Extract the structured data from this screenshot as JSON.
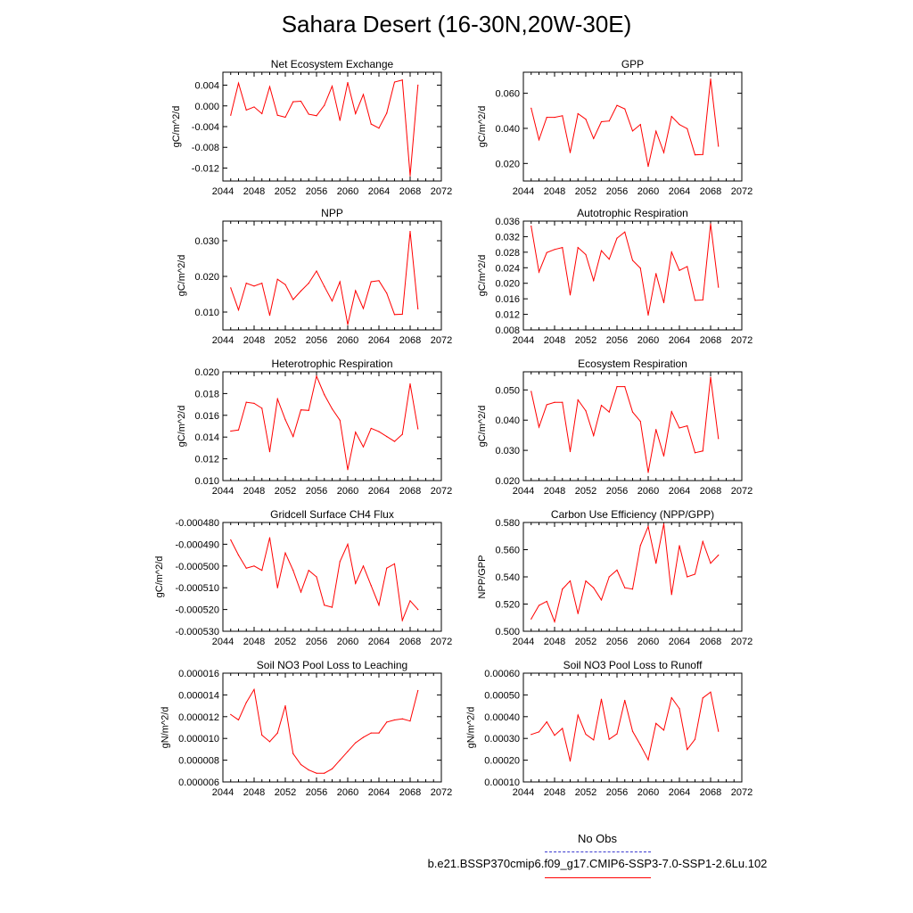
{
  "title": "Sahara Desert (16-30N,20W-30E)",
  "legend": {
    "obs_label": "No Obs",
    "obs_color": "#3a3ad0",
    "run_label": "b.e21.BSSP370cmip6.f09_g17.CMIP6-SSP3-7.0-SSP1-2.6Lu.102",
    "run_color": "#ff0000"
  },
  "chart_data": [
    {
      "type": "line",
      "title": "Net Ecosystem Exchange",
      "ylabel": "gC/m^2/d",
      "xlim": [
        2044,
        2072
      ],
      "ylim": [
        -0.0145,
        0.0065
      ],
      "x_ticks": [
        2044,
        2048,
        2052,
        2056,
        2060,
        2064,
        2068,
        2072
      ],
      "y_ticks": [
        0.004,
        0.0,
        -0.004,
        -0.008,
        -0.012
      ],
      "y_tick_labels": [
        "0.004",
        "0.000",
        "-0.004",
        "-0.008",
        "-0.012"
      ],
      "series": [
        {
          "x": [
            2045,
            2046,
            2047,
            2048,
            2049,
            2050,
            2051,
            2052,
            2053,
            2054,
            2055,
            2056,
            2057,
            2058,
            2059,
            2060,
            2061,
            2062,
            2063,
            2064,
            2065,
            2066,
            2067,
            2068,
            2069
          ],
          "values": [
            -0.0018,
            0.0044,
            -0.0008,
            -0.0002,
            -0.0015,
            0.0037,
            -0.0018,
            -0.0022,
            0.0008,
            0.0009,
            -0.0016,
            -0.0019,
            0.0001,
            0.0038,
            -0.0028,
            0.0045,
            -0.0015,
            0.0022,
            -0.0035,
            -0.0043,
            -0.0014,
            0.0046,
            0.005,
            -0.0135,
            0.004
          ]
        }
      ]
    },
    {
      "type": "line",
      "title": "GPP",
      "ylabel": "gC/m^2/d",
      "xlim": [
        2044,
        2072
      ],
      "ylim": [
        0.01,
        0.072
      ],
      "x_ticks": [
        2044,
        2048,
        2052,
        2056,
        2060,
        2064,
        2068,
        2072
      ],
      "y_ticks": [
        0.02,
        0.04,
        0.06
      ],
      "y_tick_labels": [
        "0.020",
        "0.040",
        "0.060"
      ],
      "series": [
        {
          "x": [
            2045,
            2046,
            2047,
            2048,
            2049,
            2050,
            2051,
            2052,
            2053,
            2054,
            2055,
            2056,
            2057,
            2058,
            2059,
            2060,
            2061,
            2062,
            2063,
            2064,
            2065,
            2066,
            2067,
            2068,
            2069
          ],
          "values": [
            0.0515,
            0.0335,
            0.0463,
            0.0463,
            0.0472,
            0.0262,
            0.0484,
            0.0452,
            0.0342,
            0.0438,
            0.0442,
            0.0531,
            0.0511,
            0.0385,
            0.0422,
            0.0183,
            0.0384,
            0.0262,
            0.0468,
            0.0422,
            0.0398,
            0.0249,
            0.0251,
            0.0681,
            0.0298
          ]
        }
      ]
    },
    {
      "type": "line",
      "title": "NPP",
      "ylabel": "gC/m^2/d",
      "xlim": [
        2044,
        2072
      ],
      "ylim": [
        0.005,
        0.0355
      ],
      "x_ticks": [
        2044,
        2048,
        2052,
        2056,
        2060,
        2064,
        2068,
        2072
      ],
      "y_ticks": [
        0.01,
        0.02,
        0.03
      ],
      "y_tick_labels": [
        "0.010",
        "0.020",
        "0.030"
      ],
      "series": [
        {
          "x": [
            2045,
            2046,
            2047,
            2048,
            2049,
            2050,
            2051,
            2052,
            2053,
            2054,
            2055,
            2056,
            2057,
            2058,
            2059,
            2060,
            2061,
            2062,
            2063,
            2064,
            2065,
            2066,
            2067,
            2068,
            2069
          ],
          "values": [
            0.0168,
            0.0106,
            0.0181,
            0.0173,
            0.0181,
            0.0091,
            0.0192,
            0.0177,
            0.0135,
            0.0159,
            0.0181,
            0.0215,
            0.0172,
            0.0131,
            0.0185,
            0.0065,
            0.016,
            0.011,
            0.0185,
            0.0188,
            0.0153,
            0.0093,
            0.0094,
            0.0326,
            0.0109
          ]
        }
      ]
    },
    {
      "type": "line",
      "title": "Autotrophic Respiration",
      "ylabel": "gC/m^2/d",
      "xlim": [
        2044,
        2072
      ],
      "ylim": [
        0.008,
        0.036
      ],
      "x_ticks": [
        2044,
        2048,
        2052,
        2056,
        2060,
        2064,
        2068,
        2072
      ],
      "y_ticks": [
        0.008,
        0.012,
        0.016,
        0.02,
        0.024,
        0.028,
        0.032,
        0.036
      ],
      "y_tick_labels": [
        "0.008",
        "0.012",
        "0.016",
        "0.020",
        "0.024",
        "0.028",
        "0.032",
        "0.036"
      ],
      "series": [
        {
          "x": [
            2045,
            2046,
            2047,
            2048,
            2049,
            2050,
            2051,
            2052,
            2053,
            2054,
            2055,
            2056,
            2057,
            2058,
            2059,
            2060,
            2061,
            2062,
            2063,
            2064,
            2065,
            2066,
            2067,
            2068,
            2069
          ],
          "values": [
            0.0347,
            0.0229,
            0.0279,
            0.0287,
            0.0292,
            0.017,
            0.0292,
            0.0274,
            0.0207,
            0.0284,
            0.0262,
            0.0316,
            0.0332,
            0.0259,
            0.0239,
            0.0118,
            0.0225,
            0.015,
            0.028,
            0.0233,
            0.0243,
            0.0156,
            0.0157,
            0.0353,
            0.019
          ]
        }
      ]
    },
    {
      "type": "line",
      "title": "Heterotrophic Respiration",
      "ylabel": "gC/m^2/d",
      "xlim": [
        2044,
        2072
      ],
      "ylim": [
        0.01,
        0.02
      ],
      "x_ticks": [
        2044,
        2048,
        2052,
        2056,
        2060,
        2064,
        2068,
        2072
      ],
      "y_ticks": [
        0.01,
        0.012,
        0.014,
        0.016,
        0.018,
        0.02
      ],
      "y_tick_labels": [
        "0.010",
        "0.012",
        "0.014",
        "0.016",
        "0.018",
        "0.020"
      ],
      "series": [
        {
          "x": [
            2045,
            2046,
            2047,
            2048,
            2049,
            2050,
            2051,
            2052,
            2053,
            2054,
            2055,
            2056,
            2057,
            2058,
            2059,
            2060,
            2061,
            2062,
            2063,
            2064,
            2065,
            2066,
            2067,
            2068,
            2069
          ],
          "values": [
            0.01455,
            0.01465,
            0.0172,
            0.0171,
            0.01665,
            0.01265,
            0.0175,
            0.0156,
            0.01405,
            0.0165,
            0.01645,
            0.0196,
            0.0179,
            0.0166,
            0.01555,
            0.011,
            0.01445,
            0.0131,
            0.0148,
            0.0145,
            0.01405,
            0.0136,
            0.01425,
            0.0189,
            0.01475
          ]
        }
      ]
    },
    {
      "type": "line",
      "title": "Ecosystem Respiration",
      "ylabel": "gC/m^2/d",
      "xlim": [
        2044,
        2072
      ],
      "ylim": [
        0.02,
        0.056
      ],
      "x_ticks": [
        2044,
        2048,
        2052,
        2056,
        2060,
        2064,
        2068,
        2072
      ],
      "y_ticks": [
        0.02,
        0.03,
        0.04,
        0.05
      ],
      "y_tick_labels": [
        "0.020",
        "0.030",
        "0.040",
        "0.050"
      ],
      "series": [
        {
          "x": [
            2045,
            2046,
            2047,
            2048,
            2049,
            2050,
            2051,
            2052,
            2053,
            2054,
            2055,
            2056,
            2057,
            2058,
            2059,
            2060,
            2061,
            2062,
            2063,
            2064,
            2065,
            2066,
            2067,
            2068,
            2069
          ],
          "values": [
            0.0495,
            0.0377,
            0.0451,
            0.0459,
            0.0459,
            0.0296,
            0.0467,
            0.0431,
            0.0349,
            0.0449,
            0.0427,
            0.0511,
            0.0511,
            0.0427,
            0.0396,
            0.0227,
            0.0369,
            0.0281,
            0.0428,
            0.0374,
            0.0381,
            0.0292,
            0.0298,
            0.0542,
            0.0339
          ]
        }
      ]
    },
    {
      "type": "line",
      "title": "Gridcell Surface CH4 Flux",
      "ylabel": "gC/m^2/d",
      "xlim": [
        2044,
        2072
      ],
      "ylim": [
        -0.00053,
        -0.00048
      ],
      "x_ticks": [
        2044,
        2048,
        2052,
        2056,
        2060,
        2064,
        2068,
        2072
      ],
      "y_ticks": [
        -0.00048,
        -0.00049,
        -0.0005,
        -0.00051,
        -0.00052,
        -0.00053
      ],
      "y_tick_labels": [
        "-0.000480",
        "-0.000490",
        "-0.000500",
        "-0.000510",
        "-0.000520",
        "-0.000530"
      ],
      "series": [
        {
          "x": [
            2045,
            2046,
            2047,
            2048,
            2049,
            2050,
            2051,
            2052,
            2053,
            2054,
            2055,
            2056,
            2057,
            2058,
            2059,
            2060,
            2061,
            2062,
            2063,
            2064,
            2065,
            2066,
            2067,
            2068,
            2069
          ],
          "values": [
            -0.000488,
            -0.000495,
            -0.000501,
            -0.0005,
            -0.000502,
            -0.000487,
            -0.00051,
            -0.000494,
            -0.000502,
            -0.000512,
            -0.000502,
            -0.000505,
            -0.000518,
            -0.000519,
            -0.000498,
            -0.00049,
            -0.000508,
            -0.0005,
            -0.000509,
            -0.000518,
            -0.000501,
            -0.000499,
            -0.000525,
            -0.000516,
            -0.00052
          ]
        }
      ]
    },
    {
      "type": "line",
      "title": "Carbon Use Efficiency (NPP/GPP)",
      "ylabel": "NPP/GPP",
      "xlim": [
        2044,
        2072
      ],
      "ylim": [
        0.5,
        0.58
      ],
      "x_ticks": [
        2044,
        2048,
        2052,
        2056,
        2060,
        2064,
        2068,
        2072
      ],
      "y_ticks": [
        0.5,
        0.52,
        0.54,
        0.56,
        0.58
      ],
      "y_tick_labels": [
        "0.500",
        "0.520",
        "0.540",
        "0.560",
        "0.580"
      ],
      "series": [
        {
          "x": [
            2045,
            2046,
            2047,
            2048,
            2049,
            2050,
            2051,
            2052,
            2053,
            2054,
            2055,
            2056,
            2057,
            2058,
            2059,
            2060,
            2061,
            2062,
            2063,
            2064,
            2065,
            2066,
            2067,
            2068,
            2069
          ],
          "values": [
            0.509,
            0.519,
            0.522,
            0.507,
            0.531,
            0.537,
            0.513,
            0.537,
            0.532,
            0.523,
            0.54,
            0.545,
            0.532,
            0.531,
            0.563,
            0.577,
            0.55,
            0.579,
            0.527,
            0.563,
            0.54,
            0.542,
            0.566,
            0.55,
            0.556
          ]
        }
      ]
    },
    {
      "type": "line",
      "title": "Soil NO3 Pool Loss to Leaching",
      "ylabel": "gN/m^2/d",
      "xlim": [
        2044,
        2072
      ],
      "ylim": [
        6e-06,
        1.6e-05
      ],
      "x_ticks": [
        2044,
        2048,
        2052,
        2056,
        2060,
        2064,
        2068,
        2072
      ],
      "y_ticks": [
        6e-06,
        8e-06,
        1e-05,
        1.2e-05,
        1.4e-05,
        1.6e-05
      ],
      "y_tick_labels": [
        "0.000006",
        "0.000008",
        "0.000010",
        "0.000012",
        "0.000014",
        "0.000016"
      ],
      "series": [
        {
          "x": [
            2045,
            2046,
            2047,
            2048,
            2049,
            2050,
            2051,
            2052,
            2053,
            2054,
            2055,
            2056,
            2057,
            2058,
            2059,
            2060,
            2061,
            2062,
            2063,
            2064,
            2065,
            2066,
            2067,
            2068,
            2069
          ],
          "values": [
            1.22e-05,
            1.17e-05,
            1.33e-05,
            1.45e-05,
            1.03e-05,
            9.7e-06,
            1.05e-05,
            1.3e-05,
            8.6e-06,
            7.6e-06,
            7.1e-06,
            6.8e-06,
            6.8e-06,
            7.2e-06,
            8e-06,
            8.8e-06,
            9.6e-06,
            1.01e-05,
            1.05e-05,
            1.05e-05,
            1.15e-05,
            1.17e-05,
            1.18e-05,
            1.16e-05,
            1.44e-05
          ]
        }
      ]
    },
    {
      "type": "line",
      "title": "Soil NO3 Pool Loss to Runoff",
      "ylabel": "gN/m^2/d",
      "xlim": [
        2044,
        2072
      ],
      "ylim": [
        0.0001,
        0.0006
      ],
      "x_ticks": [
        2044,
        2048,
        2052,
        2056,
        2060,
        2064,
        2068,
        2072
      ],
      "y_ticks": [
        0.0001,
        0.0002,
        0.0003,
        0.0004,
        0.0005,
        0.0006
      ],
      "y_tick_labels": [
        "0.00010",
        "0.00020",
        "0.00030",
        "0.00040",
        "0.00050",
        "0.00060"
      ],
      "series": [
        {
          "x": [
            2045,
            2046,
            2047,
            2048,
            2049,
            2050,
            2051,
            2052,
            2053,
            2054,
            2055,
            2056,
            2057,
            2058,
            2059,
            2060,
            2061,
            2062,
            2063,
            2064,
            2065,
            2066,
            2067,
            2068,
            2069
          ],
          "values": [
            0.000318,
            0.00033,
            0.000376,
            0.000314,
            0.000346,
            0.000196,
            0.000407,
            0.000319,
            0.000293,
            0.00048,
            0.000296,
            0.000321,
            0.000475,
            0.000333,
            0.00027,
            0.000202,
            0.000369,
            0.000338,
            0.000487,
            0.000437,
            0.000249,
            0.000296,
            0.000486,
            0.000513,
            0.000333
          ]
        }
      ]
    }
  ]
}
